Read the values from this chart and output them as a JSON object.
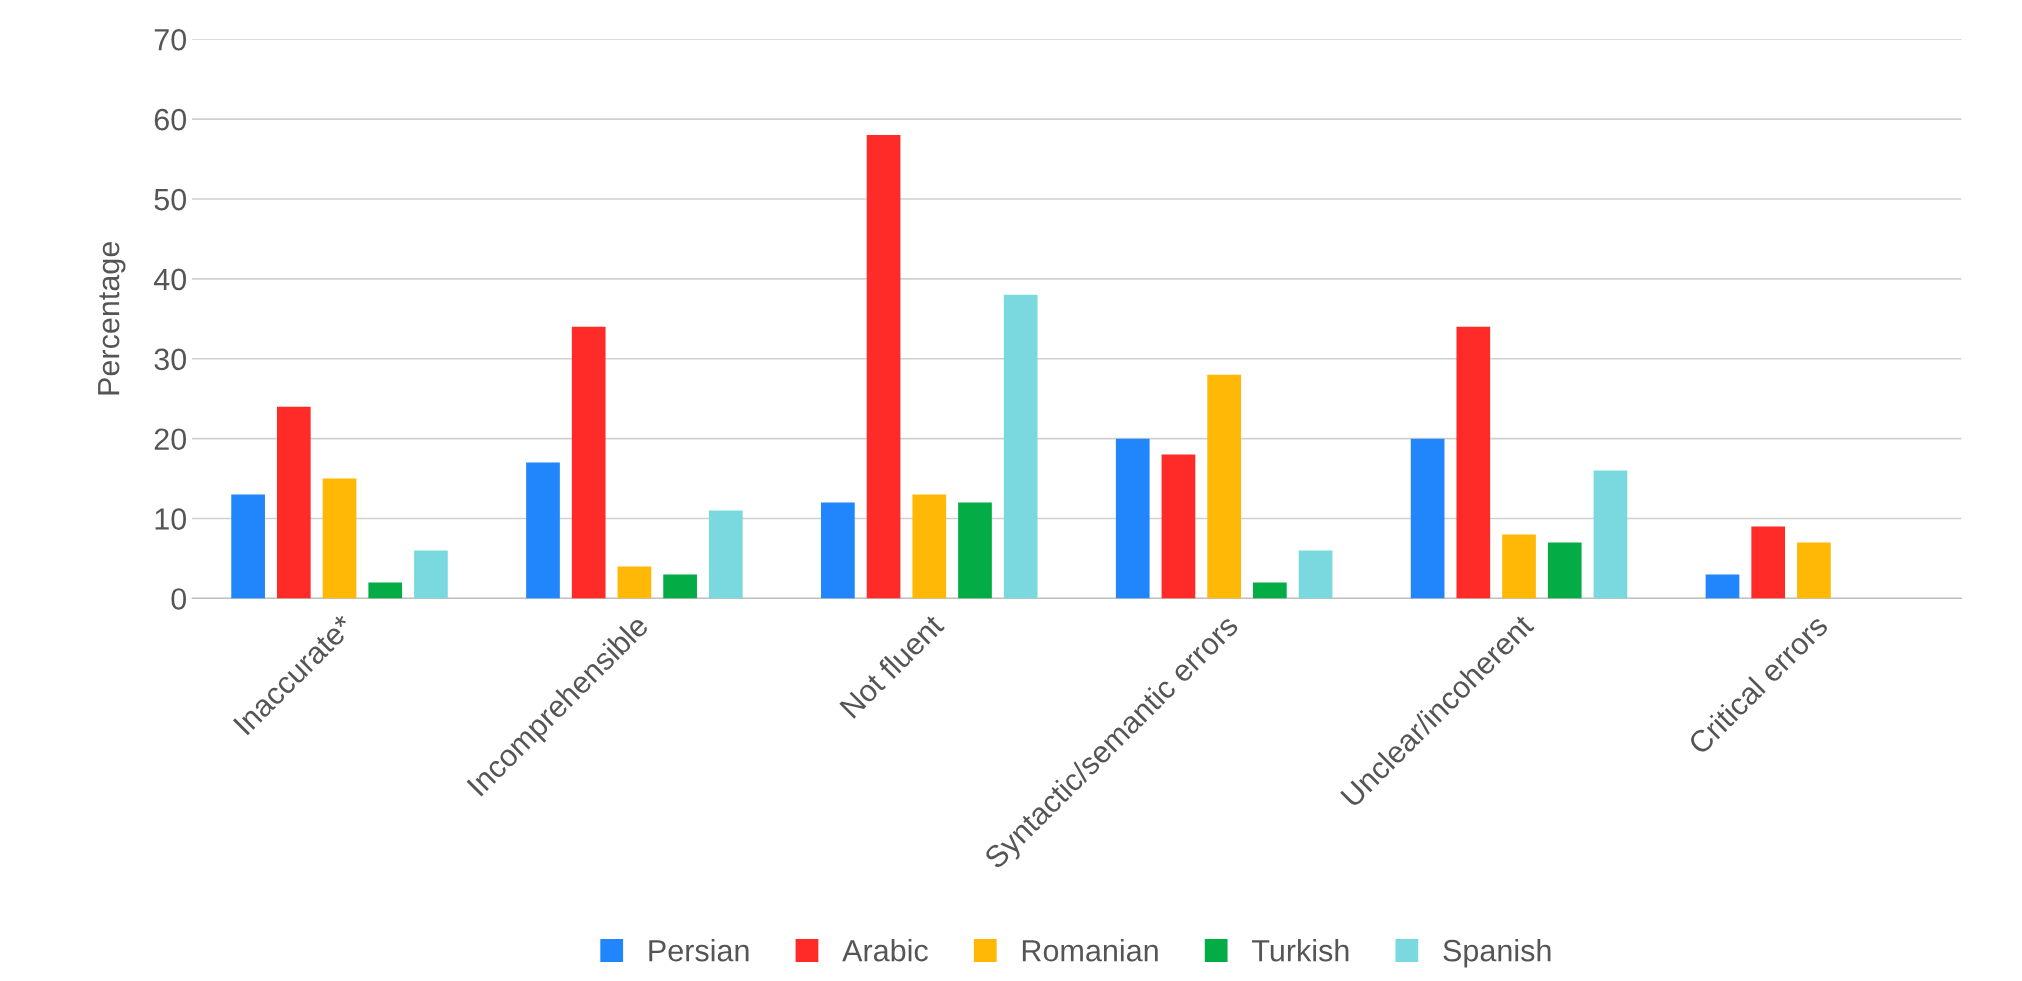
{
  "chart_data": {
    "type": "bar",
    "ylabel": "Percentage",
    "categories": [
      "Inaccurate*",
      "Incomprehensible",
      "Not fluent",
      "Syntactic/semantic errors",
      "Unclear/incoherent",
      "Critical errors"
    ],
    "series": [
      {
        "name": "Persian",
        "color": "#2185fb",
        "values": [
          13,
          17,
          12,
          20,
          20,
          3
        ]
      },
      {
        "name": "Arabic",
        "color": "#fe2b28",
        "values": [
          24,
          34,
          58,
          18,
          34,
          9
        ]
      },
      {
        "name": "Romanian",
        "color": "#feb805",
        "values": [
          15,
          4,
          13,
          28,
          8,
          7
        ]
      },
      {
        "name": "Turkish",
        "color": "#03ac45",
        "values": [
          2,
          3,
          12,
          2,
          7,
          0
        ]
      },
      {
        "name": "Spanish",
        "color": "#79d9de",
        "values": [
          6,
          11,
          38,
          6,
          16,
          0
        ]
      }
    ],
    "ylim": [
      0,
      70
    ],
    "yticks": [
      0,
      10,
      20,
      30,
      40,
      50,
      60,
      70
    ],
    "grid": "y",
    "legend": "bottom"
  }
}
